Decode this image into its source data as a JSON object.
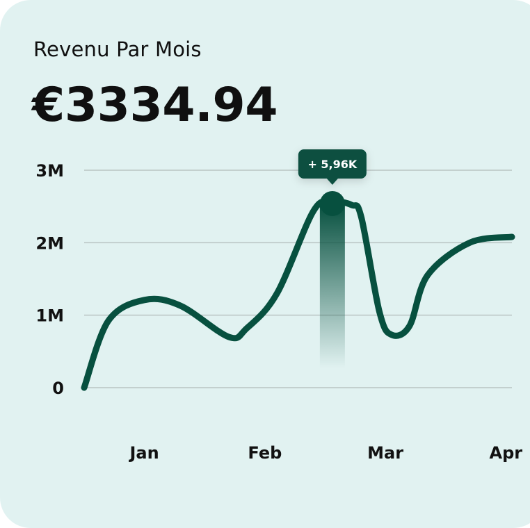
{
  "colors": {
    "background": "#e1f2f1",
    "line": "#07503f",
    "grid": "#b9c4c3",
    "text": "#111111",
    "tooltip": "#07503f"
  },
  "card": {
    "title": "Revenu Par Mois",
    "value": "€3334.94"
  },
  "tooltip": {
    "label": "+ 5,96K"
  },
  "chart_data": {
    "type": "line",
    "categories": [
      "Jan",
      "Feb",
      "Mar",
      "Apr"
    ],
    "x": [
      0,
      0.2,
      0.5,
      0.8,
      1.2,
      1.35,
      1.6,
      1.9,
      2.05,
      2.22,
      2.3,
      2.45,
      2.55,
      2.7,
      2.85,
      3.2,
      3.55
    ],
    "series": [
      {
        "values": [
          0,
          0.92,
          1.21,
          1.13,
          0.7,
          0.82,
          1.3,
          2.43,
          2.56,
          2.52,
          2.35,
          1.05,
          0.73,
          0.85,
          1.55,
          2.0,
          2.08
        ]
      }
    ],
    "highlight": {
      "x": 2.06,
      "y": 2.54
    },
    "yticks": [
      "0",
      "1M",
      "2M",
      "3M"
    ],
    "ytick_values": [
      0,
      1,
      2,
      3
    ],
    "ylim": [
      0,
      3
    ],
    "xlim": [
      0,
      3.55
    ],
    "grid": true
  }
}
